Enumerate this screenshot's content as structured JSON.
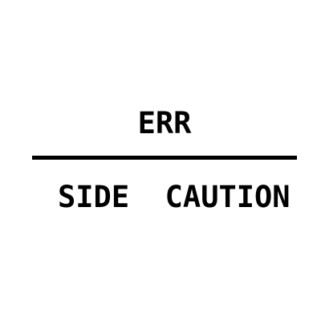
{
  "top_text": "ERR",
  "bottom_text": "SIDE  CAUTION",
  "colors": {
    "background": "#ffffff",
    "text": "#000000",
    "divider": "#000000"
  }
}
